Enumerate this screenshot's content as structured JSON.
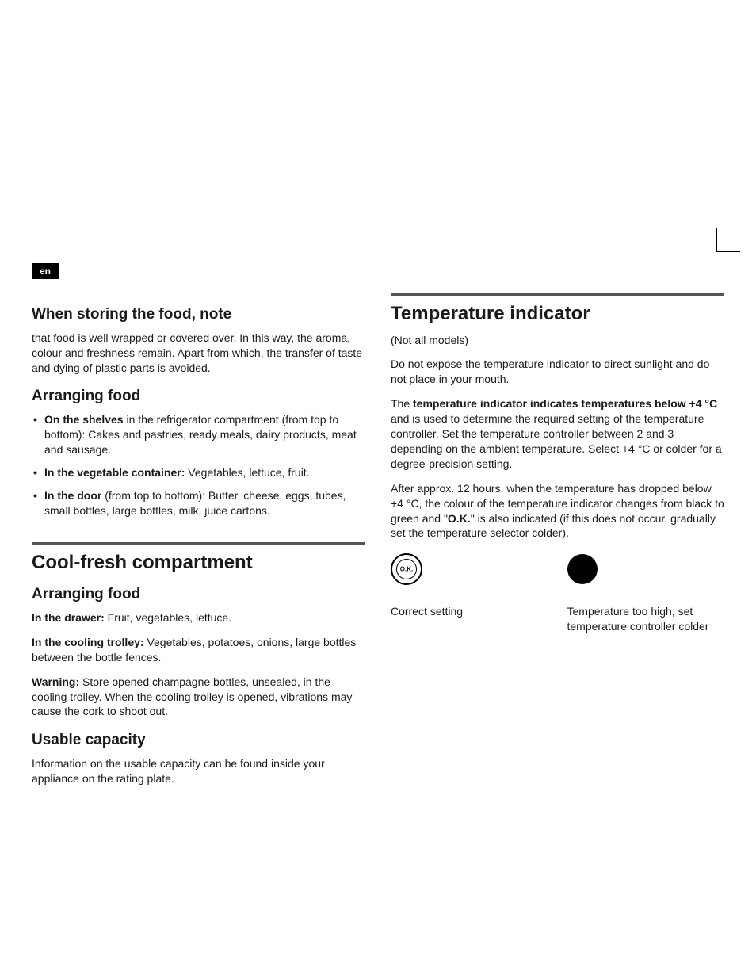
{
  "lang_badge": "en",
  "left": {
    "h2_storing": "When storing the food, note",
    "p_storing": "that food is well wrapped or covered over. In this way, the aroma, colour and freshness remain. Apart from which, the transfer of taste and dying of plastic parts is avoided.",
    "h2_arranging": "Arranging food",
    "bullets": {
      "shelves_bold": "On the shelves",
      "shelves_rest": " in the refrigerator compartment (from top to bottom): Cakes and pastries, ready meals, dairy products, meat and sausage.",
      "veg_bold": "In the vegetable container:",
      "veg_rest": " Vegetables, lettuce, fruit.",
      "door_bold": "In the door",
      "door_rest": " (from top to bottom): Butter, cheese, eggs, tubes, small bottles, large bottles, milk, juice cartons."
    },
    "h1_coolfresh": "Cool-fresh compartment",
    "h2_arranging2": "Arranging food",
    "drawer_bold": "In the drawer:",
    "drawer_rest": " Fruit, vegetables, lettuce.",
    "trolley_bold": "In the cooling trolley:",
    "trolley_rest": " Vegetables, potatoes, onions, large bottles between the bottle fences.",
    "warning_bold": "Warning:",
    "warning_rest": " Store opened champagne bottles, unsealed, in the cooling trolley. When the cooling trolley is opened, vibrations may cause the cork to shoot out.",
    "h2_capacity": "Usable capacity",
    "p_capacity": "Information on the usable capacity can be found inside your appliance on the rating plate."
  },
  "right": {
    "h1_temp": "Temperature indicator",
    "p_notall": "(Not all models)",
    "p_donot": "Do not expose the temperature indicator to direct sunlight and do not place in your mouth.",
    "p_theind_pre": "The ",
    "p_theind_bold": "temperature indicator indicates temperatures below +4 °C",
    "p_theind_rest": " and is used to determine the required setting of the temperature controller. Set the temperature controller between 2 and 3 depending on the ambient temperature. Select +4 °C or colder for a degree-precision setting.",
    "p_after_pre": "After approx. 12 hours, when the temperature has dropped below +4 °C, the colour of the temperature indicator changes from black to green and \"",
    "p_after_bold": "O.K.",
    "p_after_rest": "\" is also indicated (if this does not occur, gradually set the temperature selector colder).",
    "ok_text": "O.K.",
    "caption_correct": "Correct setting",
    "caption_toohigh": "Temperature too high,  set temperature controller colder"
  }
}
